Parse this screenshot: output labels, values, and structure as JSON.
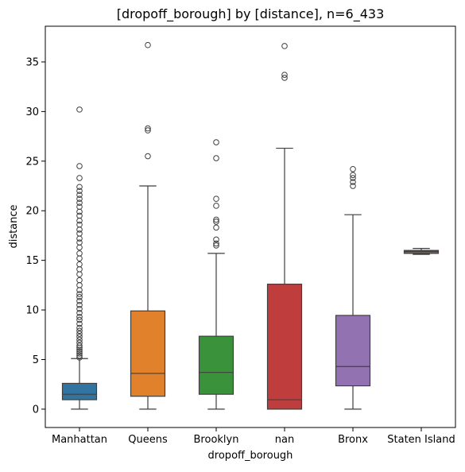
{
  "chart_data": {
    "type": "box",
    "title": "[dropoff_borough] by [distance], n=6_433",
    "xlabel": "dropoff_borough",
    "ylabel": "distance",
    "ylim": [
      -1.85,
      38.6
    ],
    "yticks": [
      0,
      5,
      10,
      15,
      20,
      25,
      30,
      35
    ],
    "ytick_labels": [
      "0",
      "5",
      "10",
      "15",
      "20",
      "25",
      "30",
      "35"
    ],
    "grid": false,
    "categories": [
      "Manhattan",
      "Queens",
      "Brooklyn",
      "nan",
      "Bronx",
      "Staten Island"
    ],
    "colors": [
      "#3274a1",
      "#e1812c",
      "#3a923a",
      "#c03d3e",
      "#9372b2",
      "#845b53"
    ],
    "boxes": [
      {
        "whisker_low": 0.0,
        "q1": 0.95,
        "median": 1.5,
        "q3": 2.6,
        "whisker_high": 5.1
      },
      {
        "whisker_low": 0.0,
        "q1": 1.3,
        "median": 3.6,
        "q3": 9.9,
        "whisker_high": 22.5
      },
      {
        "whisker_low": 0.0,
        "q1": 1.5,
        "median": 3.7,
        "q3": 7.35,
        "whisker_high": 15.7
      },
      {
        "whisker_low": 0.0,
        "q1": 0.0,
        "median": 0.95,
        "q3": 12.6,
        "whisker_high": 26.3
      },
      {
        "whisker_low": 0.0,
        "q1": 2.35,
        "median": 4.3,
        "q3": 9.45,
        "whisker_high": 19.6
      },
      {
        "whisker_low": 15.6,
        "q1": 15.7,
        "median": 15.9,
        "q3": 16.0,
        "whisker_high": 16.2
      }
    ],
    "outliers": [
      [
        5.2,
        5.4,
        5.6,
        5.8,
        6.0,
        6.2,
        6.4,
        6.7,
        7.0,
        7.3,
        7.6,
        7.9,
        8.2,
        8.6,
        9.0,
        9.3,
        9.7,
        10.1,
        10.5,
        10.9,
        11.3,
        11.6,
        12.0,
        12.5,
        13.0,
        13.6,
        14.1,
        14.6,
        15.2,
        15.7,
        16.3,
        16.8,
        17.2,
        17.7,
        18.1,
        18.6,
        19.0,
        19.5,
        19.9,
        20.4,
        20.8,
        21.2,
        21.6,
        22.0,
        22.4,
        23.3,
        24.5,
        30.2
      ],
      [
        25.5,
        28.1,
        28.3,
        36.7
      ],
      [
        16.5,
        16.7,
        17.1,
        18.3,
        18.9,
        19.1,
        20.5,
        21.2,
        25.3,
        26.9
      ],
      [
        33.4,
        33.7,
        36.6
      ],
      [
        22.5,
        22.9,
        23.3,
        23.6,
        24.2
      ],
      []
    ]
  }
}
